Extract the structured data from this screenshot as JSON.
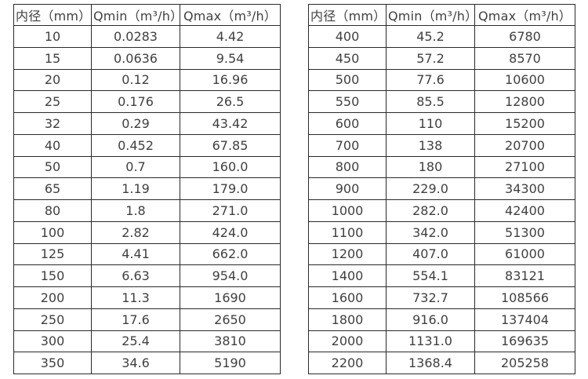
{
  "page": {
    "background_color": "#ffffff",
    "border_color": "#2a2a2a",
    "text_color": "#404040"
  },
  "tables": [
    {
      "name": "flow-spec-table-left",
      "headers": [
        "内径（mm）",
        "Qmin（m³/h）",
        "Qmax（m³/h）"
      ],
      "rows": [
        [
          "10",
          "0.0283",
          "4.42"
        ],
        [
          "15",
          "0.0636",
          "9.54"
        ],
        [
          "20",
          "0.12",
          "16.96"
        ],
        [
          "25",
          "0.176",
          "26.5"
        ],
        [
          "32",
          "0.29",
          "43.42"
        ],
        [
          "40",
          "0.452",
          "67.85"
        ],
        [
          "50",
          "0.7",
          "160.0"
        ],
        [
          "65",
          "1.19",
          "179.0"
        ],
        [
          "80",
          "1.8",
          "271.0"
        ],
        [
          "100",
          "2.82",
          "424.0"
        ],
        [
          "125",
          "4.41",
          "662.0"
        ],
        [
          "150",
          "6.63",
          "954.0"
        ],
        [
          "200",
          "11.3",
          "1690"
        ],
        [
          "250",
          "17.6",
          "2650"
        ],
        [
          "300",
          "25.4",
          "3810"
        ],
        [
          "350",
          "34.6",
          "5190"
        ]
      ]
    },
    {
      "name": "flow-spec-table-right",
      "headers": [
        "内径（mm）",
        "Qmin（m³/h）",
        "Qmax（m³/h）"
      ],
      "rows": [
        [
          "400",
          "45.2",
          "6780"
        ],
        [
          "450",
          "57.2",
          "8570"
        ],
        [
          "500",
          "77.6",
          "10600"
        ],
        [
          "550",
          "85.5",
          "12800"
        ],
        [
          "600",
          "110",
          "15200"
        ],
        [
          "700",
          "138",
          "20700"
        ],
        [
          "800",
          "180",
          "27100"
        ],
        [
          "900",
          "229.0",
          "34300"
        ],
        [
          "1000",
          "282.0",
          "42400"
        ],
        [
          "1100",
          "342.0",
          "51300"
        ],
        [
          "1200",
          "407.0",
          "61000"
        ],
        [
          "1400",
          "554.1",
          "83121"
        ],
        [
          "1600",
          "732.7",
          "108566"
        ],
        [
          "1800",
          "916.0",
          "137404"
        ],
        [
          "2000",
          "1131.0",
          "169635"
        ],
        [
          "2200",
          "1368.4",
          "205258"
        ]
      ]
    }
  ]
}
